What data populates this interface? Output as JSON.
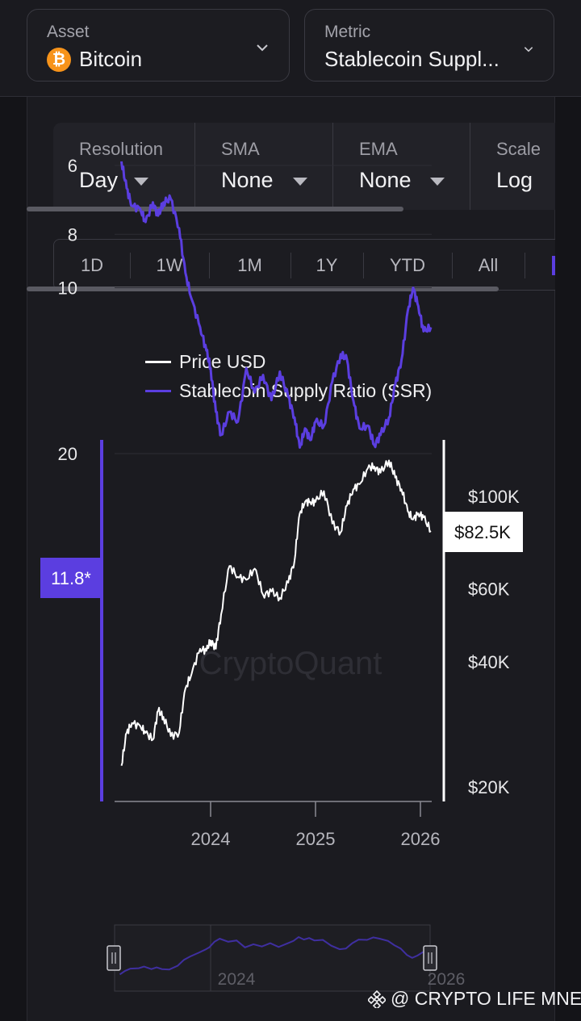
{
  "asset_select": {
    "label": "Asset",
    "value": "Bitcoin",
    "icon": "bitcoin-icon",
    "icon_color": "#f7931a"
  },
  "metric_select": {
    "label": "Metric",
    "value": "Stablecoin Suppl..."
  },
  "controls": [
    {
      "label": "Resolution",
      "value": "Day"
    },
    {
      "label": "SMA",
      "value": "None"
    },
    {
      "label": "EMA",
      "value": "None"
    },
    {
      "label": "Scale",
      "value": "Log"
    }
  ],
  "ranges": [
    "1D",
    "1W",
    "1M",
    "1Y",
    "YTD",
    "All"
  ],
  "legend": [
    {
      "name": "Price USD",
      "color": "#ffffff"
    },
    {
      "name": "Stablecoin Supply Ratio (SSR)",
      "color": "#5b3ee0"
    }
  ],
  "chart_data": {
    "type": "line",
    "scale": "log",
    "x_ticks": [
      "2024",
      "2025",
      "2026"
    ],
    "left_axis": {
      "ticks": [
        "20",
        "10",
        "8",
        "6"
      ],
      "current_label": "11.8*",
      "color": "#5b3ee0"
    },
    "right_axis": {
      "ticks": [
        "$100K",
        "$60K",
        "$40K",
        "$20K"
      ],
      "current_label": "$82.5K"
    },
    "watermark": "CryptoQuant",
    "series": [
      {
        "name": "Stablecoin Supply Ratio (SSR)",
        "color": "#5b3ee0",
        "points": [
          [
            2023.15,
            5.9
          ],
          [
            2023.2,
            6.6
          ],
          [
            2023.25,
            7.1
          ],
          [
            2023.33,
            7.2
          ],
          [
            2023.38,
            7.6
          ],
          [
            2023.45,
            7.0
          ],
          [
            2023.5,
            7.4
          ],
          [
            2023.55,
            7.0
          ],
          [
            2023.62,
            6.9
          ],
          [
            2023.7,
            7.8
          ],
          [
            2023.76,
            9.4
          ],
          [
            2023.82,
            10.5
          ],
          [
            2023.9,
            11.8
          ],
          [
            2023.96,
            13.0
          ],
          [
            2024.0,
            14.0
          ],
          [
            2024.05,
            16.8
          ],
          [
            2024.1,
            18.5
          ],
          [
            2024.18,
            16.8
          ],
          [
            2024.26,
            17.5
          ],
          [
            2024.34,
            14.0
          ],
          [
            2024.42,
            15.5
          ],
          [
            2024.5,
            14.4
          ],
          [
            2024.58,
            16.0
          ],
          [
            2024.66,
            14.2
          ],
          [
            2024.74,
            15.8
          ],
          [
            2024.8,
            17.2
          ],
          [
            2024.85,
            19.5
          ],
          [
            2024.9,
            18.0
          ],
          [
            2024.95,
            18.9
          ],
          [
            2025.0,
            17.5
          ],
          [
            2025.08,
            17.8
          ],
          [
            2025.16,
            14.8
          ],
          [
            2025.24,
            13.2
          ],
          [
            2025.3,
            13.5
          ],
          [
            2025.36,
            16.0
          ],
          [
            2025.42,
            18.0
          ],
          [
            2025.5,
            17.8
          ],
          [
            2025.56,
            19.3
          ],
          [
            2025.62,
            18.5
          ],
          [
            2025.7,
            17.2
          ],
          [
            2025.76,
            15.0
          ],
          [
            2025.82,
            13.5
          ],
          [
            2025.88,
            11.0
          ],
          [
            2025.93,
            10.0
          ],
          [
            2025.98,
            10.8
          ],
          [
            2026.03,
            12.0
          ],
          [
            2026.1,
            11.8
          ]
        ]
      },
      {
        "name": "Price USD",
        "color": "#ffffff",
        "points": [
          [
            2023.15,
            22500
          ],
          [
            2023.2,
            27000
          ],
          [
            2023.25,
            28500
          ],
          [
            2023.33,
            28000
          ],
          [
            2023.38,
            27000
          ],
          [
            2023.45,
            26000
          ],
          [
            2023.5,
            30500
          ],
          [
            2023.55,
            29500
          ],
          [
            2023.62,
            26500
          ],
          [
            2023.7,
            27000
          ],
          [
            2023.76,
            34500
          ],
          [
            2023.82,
            37500
          ],
          [
            2023.9,
            43000
          ],
          [
            2023.96,
            42500
          ],
          [
            2024.0,
            45000
          ],
          [
            2024.05,
            43000
          ],
          [
            2024.1,
            52000
          ],
          [
            2024.18,
            68000
          ],
          [
            2024.26,
            64000
          ],
          [
            2024.34,
            63000
          ],
          [
            2024.42,
            67000
          ],
          [
            2024.5,
            58000
          ],
          [
            2024.58,
            59000
          ],
          [
            2024.66,
            57000
          ],
          [
            2024.74,
            62000
          ],
          [
            2024.8,
            70000
          ],
          [
            2024.85,
            91000
          ],
          [
            2024.9,
            97000
          ],
          [
            2024.95,
            97000
          ],
          [
            2025.0,
            97000
          ],
          [
            2025.08,
            103000
          ],
          [
            2025.16,
            86000
          ],
          [
            2025.24,
            82000
          ],
          [
            2025.3,
            95000
          ],
          [
            2025.36,
            104000
          ],
          [
            2025.42,
            107000
          ],
          [
            2025.5,
            117000
          ],
          [
            2025.56,
            118000
          ],
          [
            2025.62,
            114000
          ],
          [
            2025.7,
            122000
          ],
          [
            2025.76,
            111000
          ],
          [
            2025.82,
            104000
          ],
          [
            2025.88,
            92000
          ],
          [
            2025.93,
            88000
          ],
          [
            2025.98,
            91000
          ],
          [
            2026.03,
            89000
          ],
          [
            2026.1,
            82500
          ]
        ]
      }
    ]
  },
  "navigator": {
    "x_ticks": [
      "2024",
      "2026"
    ]
  },
  "watermark_credit": "@ CRYPTO LIFE MNE"
}
